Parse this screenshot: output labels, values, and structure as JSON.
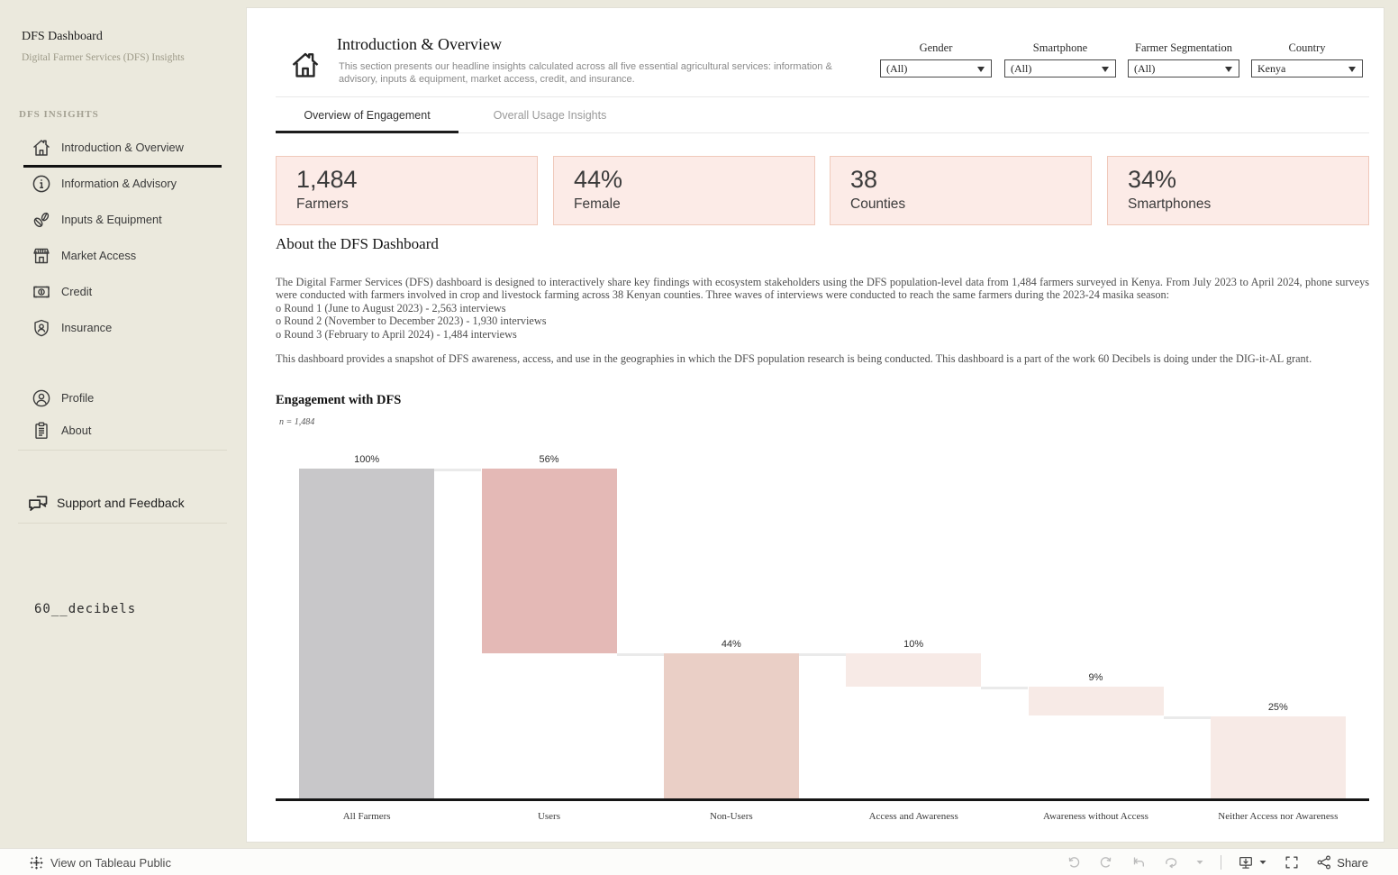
{
  "sidebar": {
    "title": "DFS Dashboard",
    "subtitle": "Digital Farmer Services (DFS) Insights",
    "section_label": "DFS INSIGHTS",
    "nav": [
      {
        "label": "Introduction & Overview",
        "icon": "home-icon",
        "active": true
      },
      {
        "label": "Information & Advisory",
        "icon": "info-icon",
        "active": false
      },
      {
        "label": "Inputs & Equipment",
        "icon": "seeds-icon",
        "active": false
      },
      {
        "label": "Market Access",
        "icon": "store-icon",
        "active": false
      },
      {
        "label": "Credit",
        "icon": "banknote-icon",
        "active": false
      },
      {
        "label": "Insurance",
        "icon": "shield-user-icon",
        "active": false
      }
    ],
    "secondary_nav": [
      {
        "label": "Profile",
        "icon": "user-icon"
      },
      {
        "label": "About",
        "icon": "clipboard-icon"
      }
    ],
    "support_label": "Support and Feedback",
    "logo_text": "60__decibels"
  },
  "header": {
    "title": "Introduction & Overview",
    "description": "This section presents our headline insights calculated across all five essential agricultural services: information & advisory, inputs & equipment, market access, credit, and insurance."
  },
  "filters": [
    {
      "label": "Gender",
      "value": "(All)"
    },
    {
      "label": "Smartphone",
      "value": "(All)"
    },
    {
      "label": "Farmer Segmentation",
      "value": "(All)"
    },
    {
      "label": "Country",
      "value": "Kenya"
    }
  ],
  "tabs": [
    {
      "label": "Overview of Engagement",
      "active": true
    },
    {
      "label": "Overall Usage Insights",
      "active": false
    }
  ],
  "kpis": [
    {
      "value": "1,484",
      "label": "Farmers"
    },
    {
      "value": "44%",
      "label": "Female"
    },
    {
      "value": "38",
      "label": "Counties"
    },
    {
      "value": "34%",
      "label": "Smartphones"
    }
  ],
  "about": {
    "heading": "About the DFS Dashboard",
    "paragraph1": "The Digital Farmer Services (DFS) dashboard is designed to interactively share key findings with ecosystem stakeholders using the DFS population-level data from 1,484 farmers surveyed in Kenya. From July 2023 to April 2024, phone surveys were conducted with farmers involved in crop and livestock farming across 38 Kenyan counties. Three waves of interviews were conducted to reach the same farmers during the 2023-24 masika season:",
    "bullets": [
      "o Round 1 (June to August 2023) - 2,563 interviews",
      "o Round 2 (November to December 2023) - 1,930 interviews",
      "o Round 3 (February to April 2024) - 1,484 interviews"
    ],
    "paragraph2": "This dashboard provides a snapshot of DFS awareness, access, and use in the geographies in which the DFS population research is being conducted. This dashboard is a part of the work 60 Decibels is doing under the DIG-it-AL grant."
  },
  "chart_data": {
    "type": "bar",
    "subtype": "waterfall",
    "title": "Engagement with DFS",
    "sample_size_note": "n = 1,484",
    "categories": [
      "All Farmers",
      "Users",
      "Non-Users",
      "Access and Awareness",
      "Awareness without Access",
      "Neither Access nor Awareness"
    ],
    "values": [
      100,
      56,
      44,
      10,
      9,
      25
    ],
    "labels": [
      "100%",
      "56%",
      "44%",
      "10%",
      "9%",
      "25%"
    ],
    "segments": [
      {
        "category": "All Farmers",
        "value": 100,
        "start": 0,
        "end": 100,
        "color": "#c8c7c9"
      },
      {
        "category": "Users",
        "value": 56,
        "start": 44,
        "end": 100,
        "color": "#e4b9b6"
      },
      {
        "category": "Non-Users",
        "value": 44,
        "start": 0,
        "end": 44,
        "color": "#eacfc6"
      },
      {
        "category": "Access and Awareness",
        "value": 10,
        "start": 34,
        "end": 44,
        "color": "#f7eae6"
      },
      {
        "category": "Awareness without Access",
        "value": 9,
        "start": 25,
        "end": 34,
        "color": "#f7eae6"
      },
      {
        "category": "Neither Access nor Awareness",
        "value": 25,
        "start": 0,
        "end": 25,
        "color": "#f7eae6"
      }
    ],
    "connectors": [
      {
        "from": 0,
        "to": 1,
        "level": 100
      },
      {
        "from": 1,
        "to": 2,
        "level": 44
      },
      {
        "from": 2,
        "to": 3,
        "level": 44
      },
      {
        "from": 3,
        "to": 4,
        "level": 34
      },
      {
        "from": 4,
        "to": 5,
        "level": 25
      }
    ],
    "ylim": [
      0,
      100
    ],
    "grid": false,
    "legend": "none",
    "connector_color": "#eaeaea",
    "axis_color": "#151515"
  },
  "theme": {
    "sidebar_bg": "#ebe9dd",
    "panel_bg": "#ffffff",
    "kpi_bg": "#fcebe7",
    "kpi_border": "#f0c9bb",
    "active_tab_underline": "#1c1c1c"
  },
  "footer": {
    "view_label": "View on Tableau Public",
    "share_label": "Share"
  }
}
